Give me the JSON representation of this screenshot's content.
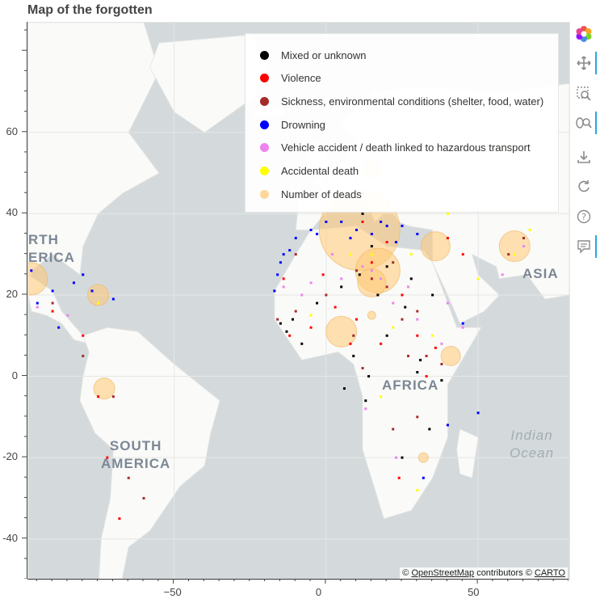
{
  "title": "Map of the forgotten",
  "legend": [
    {
      "label": "Mixed or unknown",
      "color": "#000000"
    },
    {
      "label": "Violence",
      "color": "#ff0000"
    },
    {
      "label": "Sickness, environmental conditions (shelter, food, water)",
      "color": "#a52a2a"
    },
    {
      "label": "Drowning",
      "color": "#0000ff"
    },
    {
      "label": "Vehicle accident / death linked to hazardous transport",
      "color": "#ee82ee"
    },
    {
      "label": "Accidental death",
      "color": "#ffff00"
    },
    {
      "label": "Number of deads",
      "color": "#ffd79a"
    }
  ],
  "map_labels": {
    "north_america": "RTH\nERICA",
    "south_america": "SOUTH\nAMERICA",
    "africa": "AFRICA",
    "asia": "ASIA",
    "indian_ocean": "Indian\nOcean"
  },
  "attribution": {
    "prefix": "©",
    "osm": "OpenStreetMap",
    "middle": "contributors ©",
    "carto": "CARTO"
  },
  "toolbar": {
    "logo": "bokeh-logo-icon",
    "tools": [
      "pan-icon",
      "box-zoom-icon",
      "wheel-zoom-icon",
      "save-icon",
      "reset-icon",
      "help-icon",
      "hover-icon"
    ]
  },
  "chart_data": {
    "type": "scatter",
    "title": "Map of the forgotten",
    "xlabel": "",
    "ylabel": "",
    "x_ticks": [
      -50,
      0,
      50
    ],
    "y_ticks": [
      -40,
      -20,
      0,
      20,
      40,
      60
    ],
    "xlim": [
      -98,
      80
    ],
    "ylim": [
      -50,
      87
    ],
    "grid": true,
    "legend_position": "top-right",
    "series": [
      {
        "name": "Mixed or unknown",
        "color": "#000000",
        "points": [
          [
            -15,
            13
          ],
          [
            -13,
            11
          ],
          [
            -8,
            8
          ],
          [
            9,
            5
          ],
          [
            13,
            -6
          ],
          [
            5,
            22
          ],
          [
            20,
            27
          ],
          [
            26,
            17
          ],
          [
            20,
            10
          ],
          [
            31,
            4
          ],
          [
            34,
            -13
          ],
          [
            38,
            -1
          ],
          [
            25,
            -20
          ],
          [
            30,
            1
          ],
          [
            14,
            0
          ],
          [
            17,
            20
          ],
          [
            28,
            24
          ],
          [
            12,
            40
          ],
          [
            6,
            -3
          ],
          [
            35,
            20
          ],
          [
            -11,
            14
          ],
          [
            -3,
            18
          ],
          [
            15,
            32
          ],
          [
            11,
            25
          ]
        ]
      },
      {
        "name": "Violence",
        "color": "#ff0000",
        "points": [
          [
            -12,
            10
          ],
          [
            -5,
            12
          ],
          [
            3,
            17
          ],
          [
            10,
            14
          ],
          [
            15,
            28
          ],
          [
            20,
            33
          ],
          [
            25,
            20
          ],
          [
            30,
            10
          ],
          [
            33,
            0
          ],
          [
            36,
            7
          ],
          [
            12,
            38
          ],
          [
            -80,
            10
          ],
          [
            -90,
            16
          ],
          [
            -75,
            -5
          ],
          [
            -72,
            -20
          ],
          [
            45,
            30
          ],
          [
            40,
            34
          ],
          [
            24,
            -25
          ],
          [
            -68,
            -35
          ],
          [
            8,
            8
          ],
          [
            -14,
            24
          ],
          [
            -1,
            25
          ],
          [
            18,
            8
          ]
        ]
      },
      {
        "name": "Sickness, environmental conditions (shelter, food, water)",
        "color": "#a52a2a",
        "points": [
          [
            -16,
            14
          ],
          [
            -10,
            16
          ],
          [
            0,
            20
          ],
          [
            10,
            26
          ],
          [
            15,
            24
          ],
          [
            20,
            22
          ],
          [
            25,
            14
          ],
          [
            30,
            16
          ],
          [
            33,
            5
          ],
          [
            38,
            3
          ],
          [
            30,
            -10
          ],
          [
            22,
            -13
          ],
          [
            12,
            2
          ],
          [
            -70,
            -5
          ],
          [
            -65,
            -25
          ],
          [
            -60,
            -30
          ],
          [
            -80,
            5
          ],
          [
            -90,
            18
          ],
          [
            60,
            30
          ],
          [
            65,
            34
          ],
          [
            -10,
            30
          ],
          [
            22,
            28
          ],
          [
            27,
            5
          ],
          [
            9,
            10
          ]
        ]
      },
      {
        "name": "Drowning",
        "color": "#0000ff",
        "points": [
          [
            -15,
            28
          ],
          [
            -14,
            30
          ],
          [
            -16,
            25
          ],
          [
            -10,
            34
          ],
          [
            -5,
            36
          ],
          [
            0,
            38
          ],
          [
            5,
            38
          ],
          [
            10,
            36
          ],
          [
            15,
            35
          ],
          [
            20,
            37
          ],
          [
            25,
            37
          ],
          [
            30,
            35
          ],
          [
            -80,
            25
          ],
          [
            -83,
            23
          ],
          [
            -77,
            21
          ],
          [
            -70,
            19
          ],
          [
            -88,
            12
          ],
          [
            -95,
            18
          ],
          [
            32,
            -25
          ],
          [
            40,
            -12
          ],
          [
            12,
            45
          ],
          [
            18,
            38
          ],
          [
            45,
            13
          ],
          [
            50,
            -9
          ],
          [
            -12,
            31
          ],
          [
            -3,
            35
          ],
          [
            8,
            34
          ],
          [
            23,
            33
          ],
          [
            -17,
            21
          ],
          [
            -90,
            21
          ],
          [
            -97,
            26
          ]
        ]
      },
      {
        "name": "Vehicle accident / death linked to hazardous transport",
        "color": "#ee82ee",
        "points": [
          [
            -14,
            22
          ],
          [
            -5,
            23
          ],
          [
            5,
            24
          ],
          [
            12,
            27
          ],
          [
            15,
            26
          ],
          [
            18,
            24
          ],
          [
            22,
            18
          ],
          [
            30,
            14
          ],
          [
            38,
            8
          ],
          [
            45,
            12
          ],
          [
            13,
            -8
          ],
          [
            23,
            -20
          ],
          [
            -85,
            15
          ],
          [
            -95,
            17
          ],
          [
            65,
            32
          ],
          [
            58,
            25
          ],
          [
            10,
            48
          ],
          [
            16,
            45
          ],
          [
            20,
            42
          ],
          [
            0,
            48
          ],
          [
            -8,
            20
          ],
          [
            2,
            30
          ],
          [
            27,
            22
          ],
          [
            40,
            18
          ]
        ]
      },
      {
        "name": "Accidental death",
        "color": "#ffff00",
        "points": [
          [
            8,
            30
          ],
          [
            28,
            30
          ],
          [
            50,
            24
          ],
          [
            62,
            30
          ],
          [
            -5,
            15
          ],
          [
            15,
            30
          ],
          [
            35,
            10
          ],
          [
            -75,
            18
          ],
          [
            18,
            -5
          ],
          [
            40,
            40
          ],
          [
            67,
            36
          ],
          [
            30,
            -28
          ],
          [
            22,
            12
          ]
        ]
      }
    ],
    "circles": [
      {
        "label": "Number of deads",
        "lon": 11,
        "lat": 36,
        "size": 100
      },
      {
        "label": "Number of deads",
        "lon": 17,
        "lat": 26,
        "size": 55
      },
      {
        "label": "Number of deads",
        "lon": 15,
        "lat": 23,
        "size": 35
      },
      {
        "label": "Number of deads",
        "lon": 36,
        "lat": 32,
        "size": 36
      },
      {
        "label": "Number of deads",
        "lon": 62,
        "lat": 32,
        "size": 38
      },
      {
        "label": "Number of deads",
        "lon": 5,
        "lat": 11,
        "size": 38
      },
      {
        "label": "Number of deads",
        "lon": -97,
        "lat": 24,
        "size": 40
      },
      {
        "label": "Number of deads",
        "lon": -75,
        "lat": 20,
        "size": 26
      },
      {
        "label": "Number of deads",
        "lon": -73,
        "lat": -3,
        "size": 26
      },
      {
        "label": "Number of deads",
        "lon": 41,
        "lat": 5,
        "size": 24
      },
      {
        "label": "Number of deads",
        "lon": 15,
        "lat": 51,
        "size": 22
      },
      {
        "label": "Number of deads",
        "lon": 58,
        "lat": 56,
        "size": 10
      },
      {
        "label": "Number of deads",
        "lon": 32,
        "lat": -20,
        "size": 12
      },
      {
        "label": "Number of deads",
        "lon": 15,
        "lat": 15,
        "size": 10
      }
    ]
  }
}
